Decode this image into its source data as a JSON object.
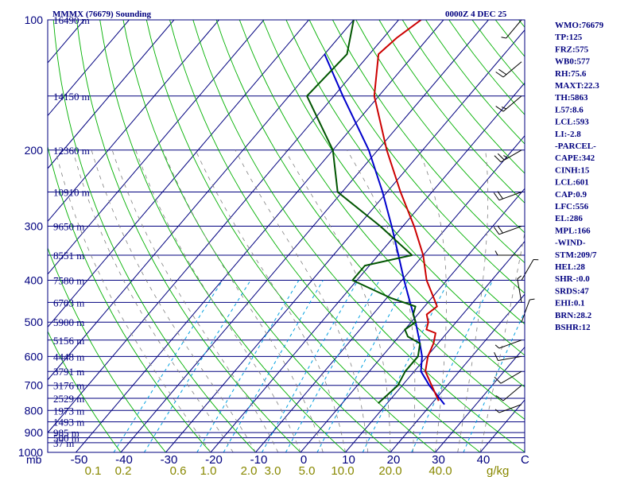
{
  "header": {
    "station": "MMMX (76679) Sounding",
    "time": "0000Z  4 DEC 25"
  },
  "colors": {
    "axis": "#00007f",
    "isobar": "#00007f",
    "isotherm": "#00007f",
    "dry_adiabat": "#00b000",
    "moist_adiabat": "#808080",
    "mixing_ratio": "#00a0e0",
    "temperature": "#cc0000",
    "dewpoint": "#005500",
    "parcel": "#0000cc",
    "wind": "#000000"
  },
  "side_panel": [
    "WMO:76679",
    "TP:125",
    "FRZ:575",
    "WB0:577",
    "RH:75.6",
    "MAXT:22.3",
    "TH:5863",
    "L57:8.6",
    "LCL:593",
    "LI:-2.8",
    "-PARCEL-",
    "CAPE:342",
    "CINH:15",
    "LCL:601",
    "CAP:0.9",
    "LFC:556",
    "EL:286",
    "MPL:166",
    "-WIND-",
    "STM:209/7",
    "HEL:28",
    "SHR-:0.0",
    "SRDS:47",
    "EHI:0.1",
    "BRN:28.2",
    "BSHR:12"
  ],
  "chart_data": {
    "type": "skew-t",
    "title": "MMMX (76679) Sounding",
    "pressure_axis_label": "mb",
    "temperature_axis_label": "C",
    "mixing_ratio_axis_label": "g/kg",
    "pressure_range": [
      1000,
      100
    ],
    "temperature_range": [
      -50,
      50
    ],
    "pressure_ticks": [
      100,
      200,
      300,
      400,
      500,
      600,
      700,
      800,
      900,
      1000
    ],
    "isobars": [
      100,
      150,
      200,
      250,
      300,
      350,
      400,
      450,
      500,
      550,
      600,
      650,
      700,
      750,
      800,
      850,
      900,
      925,
      950,
      1000
    ],
    "temperature_ticks": [
      "-50",
      "-40",
      "-30",
      "-20",
      "-10",
      "0",
      "10",
      "20",
      "30",
      "40"
    ],
    "mixing_ratio_ticks": [
      {
        "label": "0.1",
        "value": 0.1
      },
      {
        "label": "0.2",
        "value": 0.2
      },
      {
        "label": "0.6",
        "value": 0.6
      },
      {
        "label": "1.0",
        "value": 1.0
      },
      {
        "label": "2.0",
        "value": 2.0
      },
      {
        "label": "3.0",
        "value": 3.0
      },
      {
        "label": "5.0",
        "value": 5.0
      },
      {
        "label": "10.0",
        "value": 10.0
      },
      {
        "label": "20.0",
        "value": 20.0
      },
      {
        "label": "40.0",
        "value": 40.0
      }
    ],
    "height_labels": [
      {
        "p": 100,
        "label": "16490 m"
      },
      {
        "p": 150,
        "label": "14150 m"
      },
      {
        "p": 200,
        "label": "12360 m"
      },
      {
        "p": 250,
        "label": "10910 m"
      },
      {
        "p": 300,
        "label": "9650 m"
      },
      {
        "p": 350,
        "label": "8551 m"
      },
      {
        "p": 400,
        "label": "7580 m"
      },
      {
        "p": 450,
        "label": "6703 m"
      },
      {
        "p": 500,
        "label": "5900 m"
      },
      {
        "p": 550,
        "label": "5156 m"
      },
      {
        "p": 600,
        "label": "4448 m"
      },
      {
        "p": 650,
        "label": "3791 m"
      },
      {
        "p": 700,
        "label": "3176 m"
      },
      {
        "p": 750,
        "label": "2529 m"
      },
      {
        "p": 800,
        "label": "1973 m"
      },
      {
        "p": 850,
        "label": "1493 m"
      },
      {
        "p": 900,
        "label": "985 m"
      },
      {
        "p": 925,
        "label": "500 m"
      },
      {
        "p": 950,
        "label": "37 m"
      }
    ],
    "temperature_profile": [
      {
        "p": 760,
        "t": 21.0
      },
      {
        "p": 700,
        "t": 16.5
      },
      {
        "p": 650,
        "t": 12.5
      },
      {
        "p": 600,
        "t": 10.2
      },
      {
        "p": 560,
        "t": 9.0
      },
      {
        "p": 530,
        "t": 7.5
      },
      {
        "p": 520,
        "t": 4.8
      },
      {
        "p": 500,
        "t": 3.8
      },
      {
        "p": 480,
        "t": 2.0
      },
      {
        "p": 460,
        "t": 2.8
      },
      {
        "p": 440,
        "t": 0.5
      },
      {
        "p": 400,
        "t": -4.5
      },
      {
        "p": 350,
        "t": -10.0
      },
      {
        "p": 300,
        "t": -17.5
      },
      {
        "p": 250,
        "t": -27.0
      },
      {
        "p": 200,
        "t": -38.0
      },
      {
        "p": 150,
        "t": -51.0
      },
      {
        "p": 120,
        "t": -58.0
      },
      {
        "p": 110,
        "t": -57.0
      },
      {
        "p": 100,
        "t": -55.0
      }
    ],
    "dewpoint_profile": [
      {
        "p": 770,
        "t": 8.0
      },
      {
        "p": 700,
        "t": 9.0
      },
      {
        "p": 650,
        "t": 8.0
      },
      {
        "p": 600,
        "t": 8.0
      },
      {
        "p": 560,
        "t": 6.0
      },
      {
        "p": 540,
        "t": 2.0
      },
      {
        "p": 520,
        "t": 0.0
      },
      {
        "p": 500,
        "t": 1.0
      },
      {
        "p": 480,
        "t": -1.0
      },
      {
        "p": 460,
        "t": -2.0
      },
      {
        "p": 440,
        "t": -9.0
      },
      {
        "p": 400,
        "t": -21.0
      },
      {
        "p": 370,
        "t": -21.0
      },
      {
        "p": 350,
        "t": -12.5
      },
      {
        "p": 300,
        "t": -25.0
      },
      {
        "p": 250,
        "t": -41.0
      },
      {
        "p": 200,
        "t": -50.0
      },
      {
        "p": 150,
        "t": -66.0
      },
      {
        "p": 120,
        "t": -65.0
      },
      {
        "p": 100,
        "t": -70.0
      }
    ],
    "parcel_profile": [
      {
        "p": 775,
        "t": 23.0
      },
      {
        "p": 700,
        "t": 16.0
      },
      {
        "p": 650,
        "t": 11.5
      },
      {
        "p": 600,
        "t": 8.9
      },
      {
        "p": 550,
        "t": 5.2
      },
      {
        "p": 500,
        "t": 1.0
      },
      {
        "p": 450,
        "t": -4.0
      },
      {
        "p": 400,
        "t": -9.5
      },
      {
        "p": 350,
        "t": -15.5
      },
      {
        "p": 300,
        "t": -22.5
      },
      {
        "p": 250,
        "t": -31.0
      },
      {
        "p": 200,
        "t": -42.0
      },
      {
        "p": 150,
        "t": -58.0
      },
      {
        "p": 120,
        "t": -70.0
      }
    ],
    "wind_barbs": [
      {
        "p": 775,
        "dir": 250,
        "kt": 5
      },
      {
        "p": 700,
        "dir": 230,
        "kt": 10
      },
      {
        "p": 650,
        "dir": 240,
        "kt": 10
      },
      {
        "p": 600,
        "dir": 260,
        "kt": 10
      },
      {
        "p": 550,
        "dir": 250,
        "kt": 5
      },
      {
        "p": 500,
        "dir": 20,
        "kt": 5
      },
      {
        "p": 450,
        "dir": 350,
        "kt": 5
      },
      {
        "p": 400,
        "dir": 30,
        "kt": 5
      },
      {
        "p": 350,
        "dir": 270,
        "kt": 5
      },
      {
        "p": 300,
        "dir": 250,
        "kt": 20
      },
      {
        "p": 250,
        "dir": 250,
        "kt": 20
      },
      {
        "p": 200,
        "dir": 240,
        "kt": 25
      },
      {
        "p": 150,
        "dir": 230,
        "kt": 15
      },
      {
        "p": 125,
        "dir": 230,
        "kt": 20
      },
      {
        "p": 100,
        "dir": 220,
        "kt": 5
      }
    ]
  }
}
